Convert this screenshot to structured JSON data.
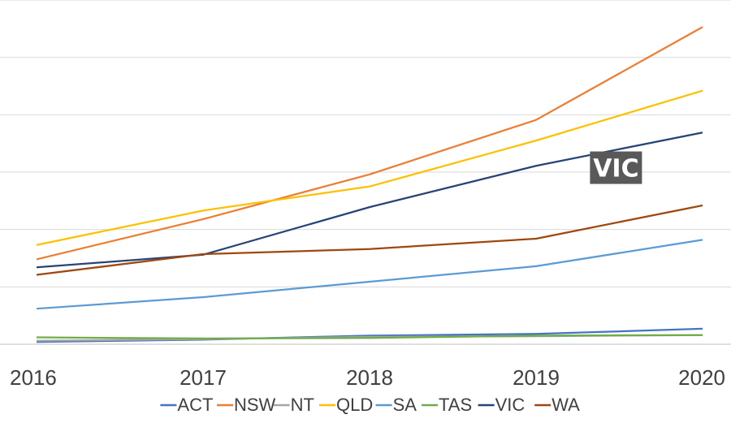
{
  "chart_data": {
    "type": "line",
    "x": [
      "2016",
      "2017",
      "2018",
      "2019",
      "2020"
    ],
    "ylim": [
      0,
      600
    ],
    "grid": true,
    "legend_position": "bottom",
    "colors": {
      "ACT": "#4472c4",
      "NSW": "#ed7d31",
      "NT": "#a5a5a5",
      "QLD": "#ffc000",
      "SA": "#5b9bd5",
      "TAS": "#70ad47",
      "VIC": "#264478",
      "WA": "#9e480e"
    },
    "series": [
      {
        "name": "ACT",
        "values": [
          4,
          8,
          15,
          18,
          27
        ]
      },
      {
        "name": "NSW",
        "values": [
          148,
          218,
          296,
          391,
          553
        ]
      },
      {
        "name": "NT",
        "values": [
          6,
          9,
          13,
          14,
          16
        ]
      },
      {
        "name": "QLD",
        "values": [
          173,
          233,
          275,
          355,
          442
        ]
      },
      {
        "name": "SA",
        "values": [
          62,
          82,
          109,
          136,
          182
        ]
      },
      {
        "name": "TAS",
        "values": [
          12,
          10,
          11,
          15,
          16
        ]
      },
      {
        "name": "VIC",
        "values": [
          134,
          156,
          239,
          311,
          369
        ]
      },
      {
        "name": "WA",
        "values": [
          121,
          157,
          166,
          184,
          242
        ]
      }
    ],
    "annotation": {
      "text": "VIC"
    }
  }
}
